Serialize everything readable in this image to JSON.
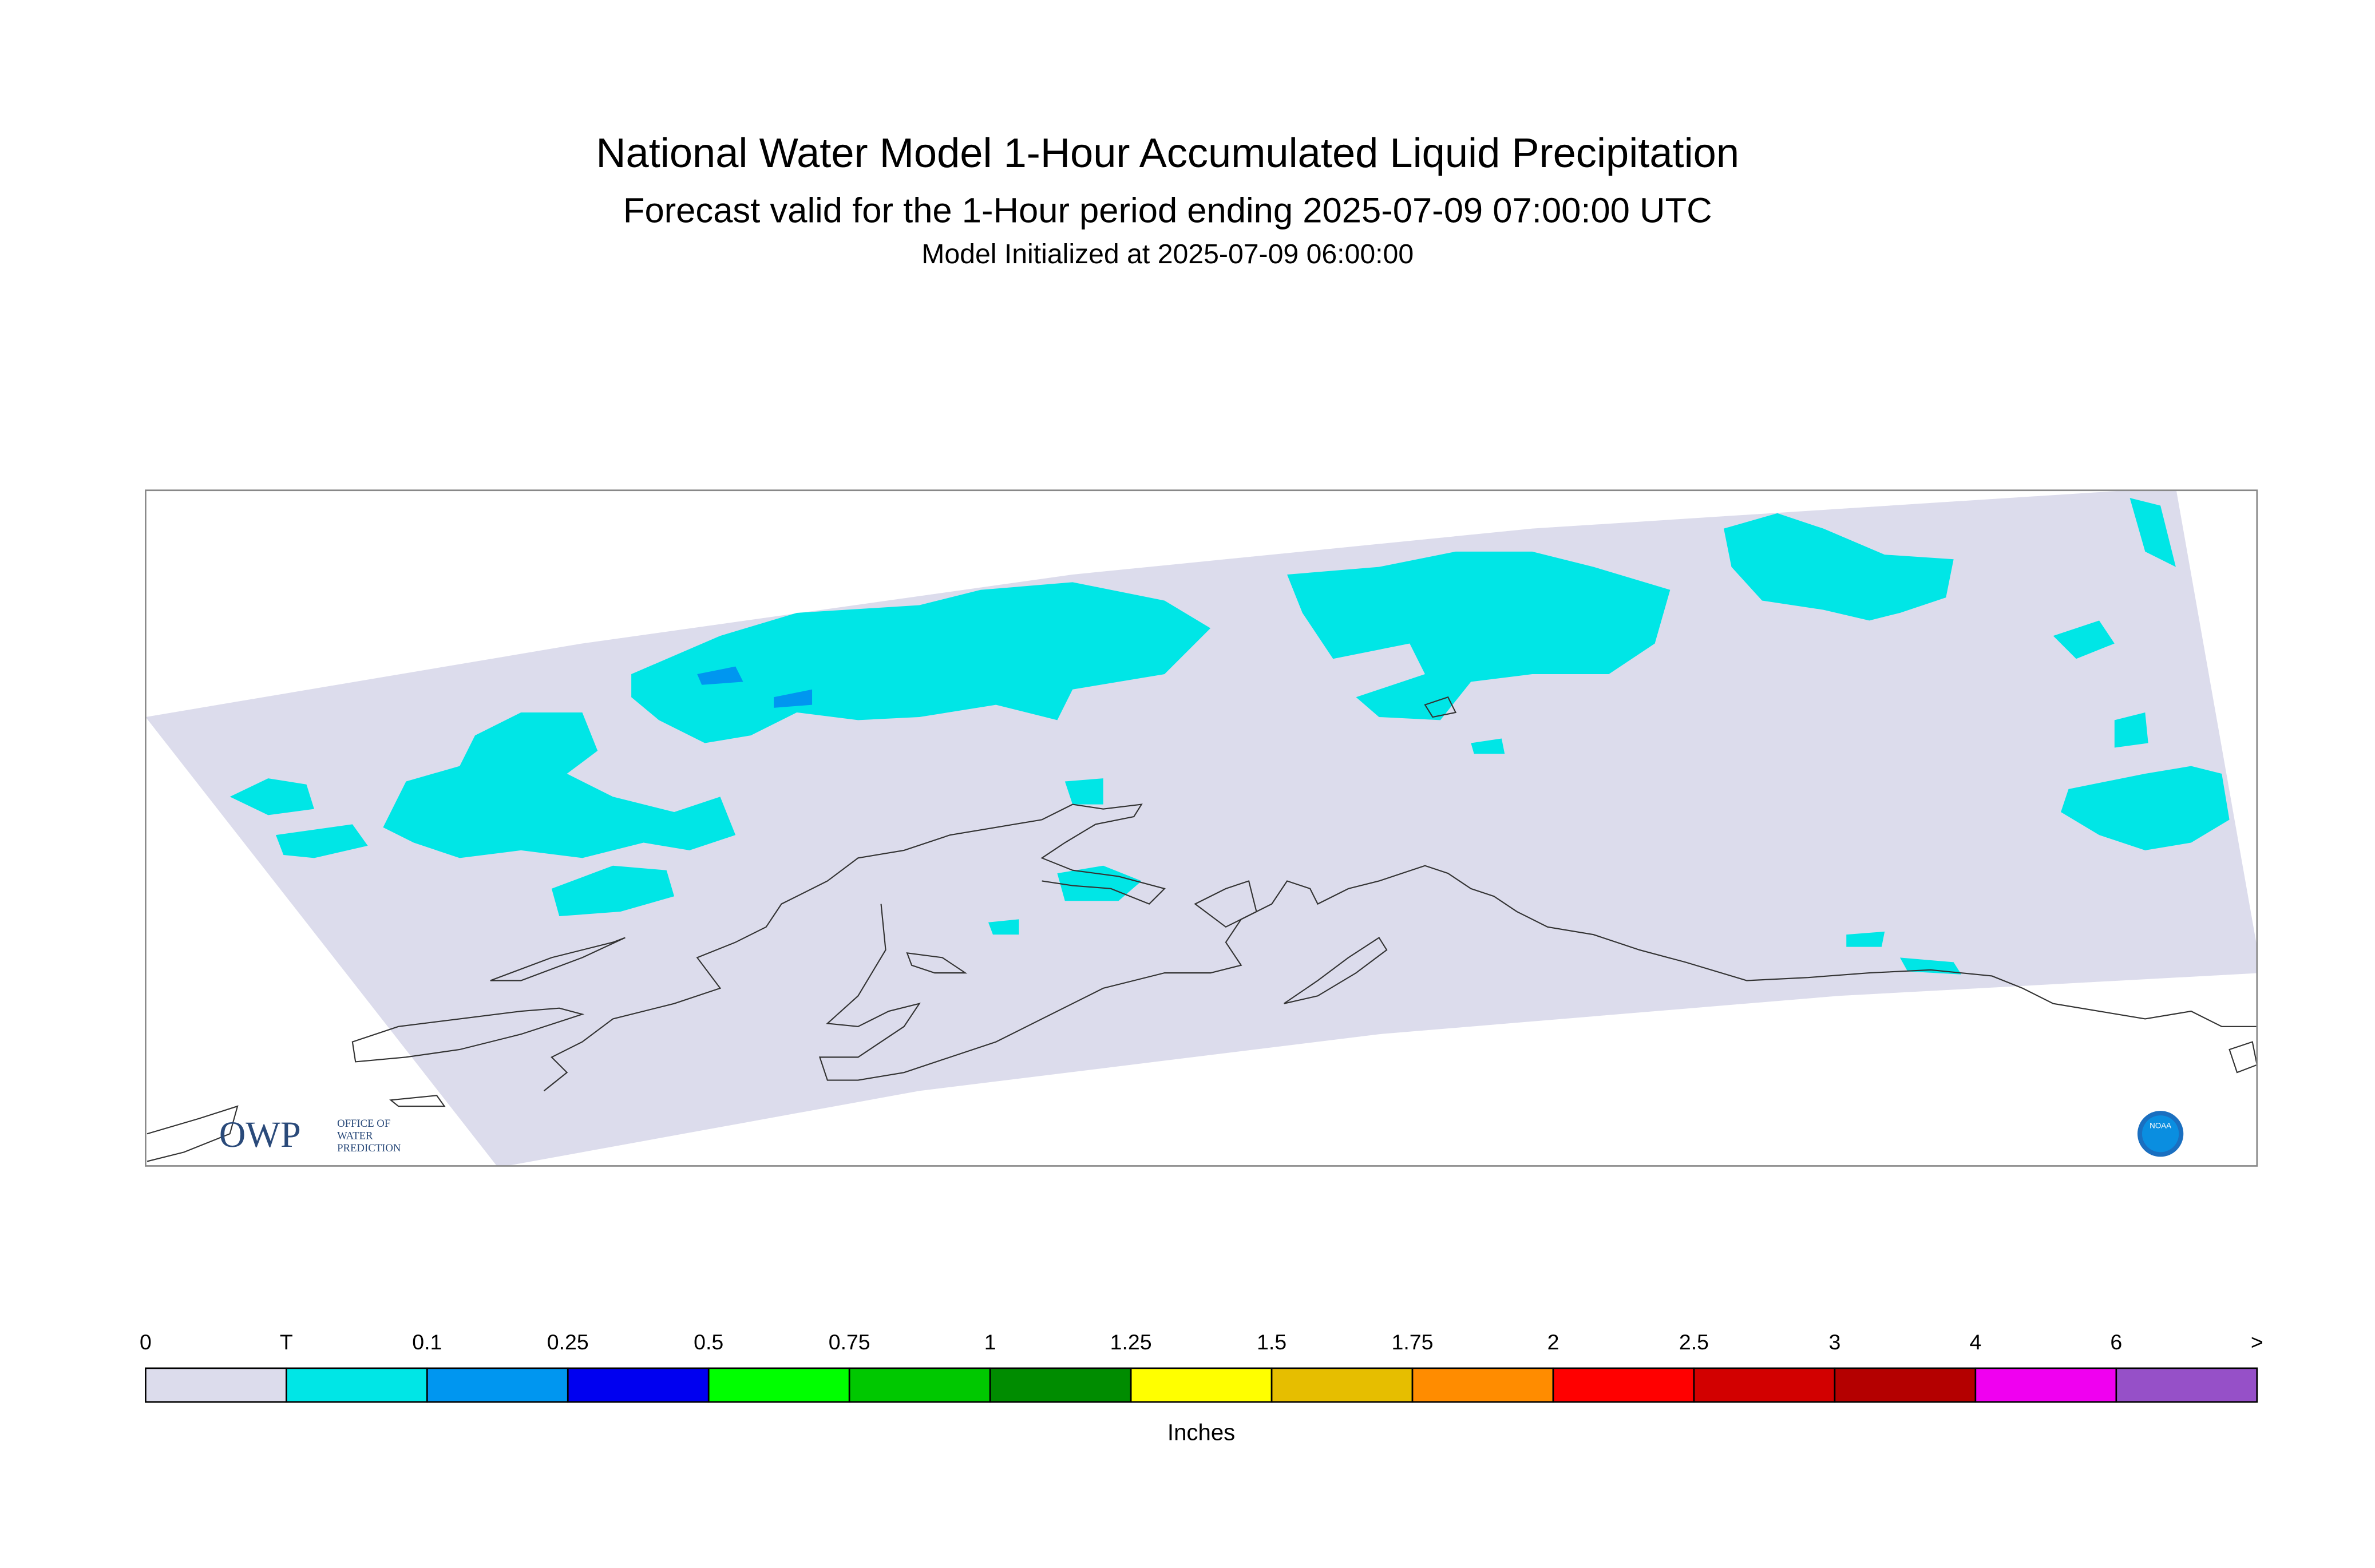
{
  "header": {
    "title": "National Water Model 1-Hour Accumulated Liquid Precipitation",
    "subtitle": "Forecast valid for the 1-Hour period ending 2025-07-09 07:00:00 UTC",
    "initialized": "Model Initialized at 2025-07-09 06:00:00"
  },
  "logos": {
    "owp": "OWP",
    "owp_text": [
      "OFFICE OF",
      "WATER",
      "PREDICTION"
    ],
    "noaa": "NOAA"
  },
  "legend": {
    "labels": [
      "0",
      "T",
      "0.1",
      "0.25",
      "0.5",
      "0.75",
      "1",
      "1.25",
      "1.5",
      "1.75",
      "2",
      "2.5",
      "3",
      "4",
      "6",
      ">"
    ],
    "colors": [
      "#dcdcec",
      "#00e6e6",
      "#0096f0",
      "#0000f0",
      "#00ff00",
      "#00c800",
      "#008c00",
      "#ffff00",
      "#e6be00",
      "#ff8c00",
      "#ff0000",
      "#d20000",
      "#b40000",
      "#f000f0",
      "#9650c8"
    ],
    "units": "Inches"
  }
}
